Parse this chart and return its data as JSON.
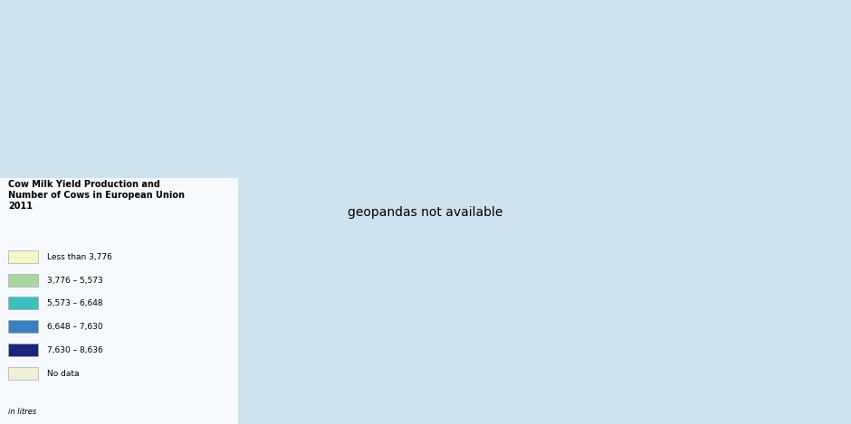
{
  "title": "Cow Milk Yield Production and\nNumber of Cows in European Union\n2011",
  "subtitle": "in litres",
  "background_color": "#cee3ef",
  "land_color_nodata": "#f0f0d8",
  "land_color_outside": "#f0f0d8",
  "ocean_color": "#cee3ef",
  "legend_categories": [
    {
      "label": "Less than 3,776",
      "color": "#f5f5c8"
    },
    {
      "label": "3,776 – 5,573",
      "color": "#a8d5a2"
    },
    {
      "label": "5,573 – 6,648",
      "color": "#3bbfbf"
    },
    {
      "label": "6,648 – 7,630",
      "color": "#3a7fc1"
    },
    {
      "label": "7,630 – 8,636",
      "color": "#1a237e"
    },
    {
      "label": "No data",
      "color": "#f0f0d8"
    }
  ],
  "country_colors": {
    "Finland": "#1a237e",
    "Sweden": "#1a237e",
    "Denmark": "#1a237e",
    "Estonia": "#3bbfbf",
    "Latvia": "#3bbfbf",
    "Lithuania": "#a8d5a2",
    "Poland": "#a8d5a2",
    "Germany": "#3bbfbf",
    "Netherlands": "#3a7fc1",
    "Belgium": "#3a7fc1",
    "Luxembourg": "#3a7fc1",
    "United Kingdom": "#3a7fc1",
    "Ireland": "#a8d5a2",
    "France": "#3bbfbf",
    "Austria": "#3bbfbf",
    "Czech Republic": "#3bbfbf",
    "Slovakia": "#a8d5a2",
    "Hungary": "#a8d5a2",
    "Romania": "#a8d5a2",
    "Bulgaria": "#f5f5c8",
    "Slovenia": "#3a7fc1",
    "Croatia": "#a8d5a2",
    "Italy": "#3bbfbf",
    "Portugal": "#3bbfbf",
    "Spain": "#1a237e",
    "Greece": "#f5f5c8",
    "Cyprus": "#3a7fc1",
    "Malta": "#f0f0d8",
    "Norway": "#f0f0d8",
    "Switzerland": "#f0f0d8",
    "Iceland": "#f0f0d8",
    "Russia": "#f0f0d8",
    "Ukraine": "#f0f0d8",
    "Belarus": "#f0f0d8",
    "Serbia": "#f0f0d8",
    "Bosnia and Herzegovina": "#f0f0d8",
    "Montenegro": "#f0f0d8",
    "Albania": "#f0f0d8",
    "North Macedonia": "#f0f0d8",
    "Moldova": "#f0f0d8",
    "Turkey": "#f0f0d8",
    "Kosovo": "#f0f0d8"
  },
  "xlim": [
    -25,
    45
  ],
  "ylim": [
    34,
    72
  ],
  "figsize": [
    9.4,
    4.69
  ],
  "dpi": 100
}
